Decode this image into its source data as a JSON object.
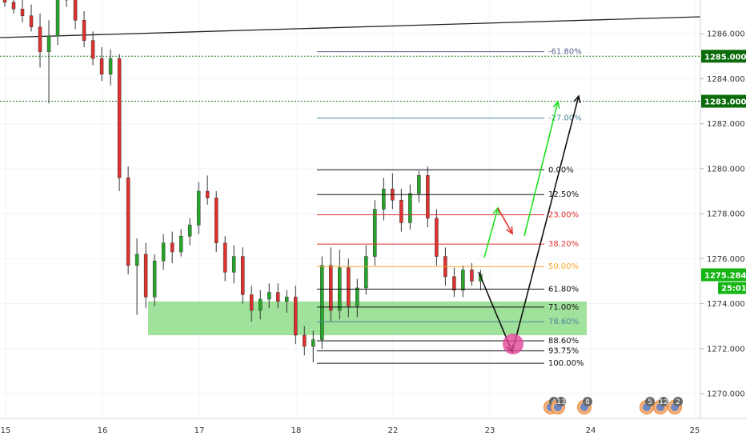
{
  "chart_data": {
    "type": "candlestick",
    "colors": {
      "up": "#26a629",
      "down": "#e0312e",
      "zone": "#8fdc8a",
      "axis_bg": "#ffffff"
    },
    "x_axis_labels": [
      "15",
      "16",
      "17",
      "18",
      "22",
      "23",
      "24",
      "25"
    ],
    "y_ticks": [
      1270.0,
      1272.0,
      1274.0,
      1276.0,
      1278.0,
      1280.0,
      1282.0,
      1284.0,
      1286.0
    ],
    "y_tick_labels": [
      "1270.000",
      "1272.000",
      "1274.000",
      "1276.000",
      "1278.000",
      "1280.000",
      "1282.000",
      "1284.000",
      "1286.000"
    ],
    "ylim": [
      1268.9,
      1287.5
    ],
    "price_tags": [
      {
        "value": 1285.0,
        "label": "1285.000",
        "color": "#0b6b0b"
      },
      {
        "value": 1283.0,
        "label": "1283.000",
        "color": "#0b6b0b"
      },
      {
        "value": 1275.284,
        "label": "1275.284",
        "color": "#14b514"
      }
    ],
    "countdown": "25:01",
    "trendline": {
      "start": [
        0,
        1286.4
      ],
      "end": [
        875,
        1287.0
      ]
    },
    "demand_zone": {
      "low": 1272.6,
      "high": 1274.1
    },
    "fibonacci": [
      {
        "level": "-61.80%",
        "price": 1285.2,
        "color": "#5a5a8c"
      },
      {
        "level": "-27.00%",
        "price": 1282.25,
        "color": "#4a8aa0"
      },
      {
        "level": "0.00%",
        "price": 1279.95,
        "color": "#111111"
      },
      {
        "level": "12.50%",
        "price": 1278.85,
        "color": "#111111"
      },
      {
        "level": "23.00%",
        "price": 1277.95,
        "color": "#e0312e"
      },
      {
        "level": "38.20%",
        "price": 1276.65,
        "color": "#e0312e"
      },
      {
        "level": "50.00%",
        "price": 1275.65,
        "color": "#f5a623"
      },
      {
        "level": "61.80%",
        "price": 1274.65,
        "color": "#111111"
      },
      {
        "level": "71.00%",
        "price": 1273.85,
        "color": "#111111"
      },
      {
        "level": "78.60%",
        "price": 1273.2,
        "color": "#4a8aa0"
      },
      {
        "level": "88.60%",
        "price": 1272.35,
        "color": "#111111"
      },
      {
        "level": "93.75%",
        "price": 1271.9,
        "color": "#111111"
      },
      {
        "level": "100.00%",
        "price": 1271.35,
        "color": "#111111"
      }
    ],
    "candles": [
      [
        1287.8,
        1288.4,
        1287.2,
        1287.4
      ],
      [
        1287.4,
        1287.9,
        1286.9,
        1287.1
      ],
      [
        1287.1,
        1287.6,
        1286.5,
        1286.8
      ],
      [
        1286.8,
        1287.3,
        1286.1,
        1286.3
      ],
      [
        1286.3,
        1286.9,
        1284.5,
        1285.2
      ],
      [
        1285.2,
        1286.6,
        1282.9,
        1285.9
      ],
      [
        1285.9,
        1288.3,
        1285.5,
        1287.9
      ],
      [
        1287.9,
        1288.2,
        1287.2,
        1287.5
      ],
      [
        1287.5,
        1287.8,
        1286.2,
        1286.6
      ],
      [
        1286.6,
        1287.0,
        1285.4,
        1285.7
      ],
      [
        1285.7,
        1286.1,
        1284.6,
        1284.9
      ],
      [
        1284.9,
        1285.4,
        1283.9,
        1284.2
      ],
      [
        1284.2,
        1285.3,
        1283.7,
        1284.9
      ],
      [
        1284.9,
        1285.1,
        1279.0,
        1279.6
      ],
      [
        1279.6,
        1280.1,
        1275.3,
        1275.7
      ],
      [
        1275.7,
        1276.9,
        1273.5,
        1276.2
      ],
      [
        1276.2,
        1276.7,
        1273.8,
        1274.3
      ],
      [
        1274.3,
        1276.2,
        1273.9,
        1275.9
      ],
      [
        1275.9,
        1277.1,
        1275.5,
        1276.7
      ],
      [
        1276.7,
        1277.2,
        1275.8,
        1276.3
      ],
      [
        1276.3,
        1277.3,
        1276.1,
        1277.0
      ],
      [
        1277.0,
        1277.8,
        1276.6,
        1277.5
      ],
      [
        1277.5,
        1279.4,
        1277.1,
        1279.0
      ],
      [
        1279.0,
        1279.7,
        1278.4,
        1278.7
      ],
      [
        1278.7,
        1279.0,
        1276.3,
        1276.7
      ],
      [
        1276.7,
        1277.0,
        1275.0,
        1275.4
      ],
      [
        1275.4,
        1276.6,
        1274.9,
        1276.1
      ],
      [
        1276.1,
        1276.5,
        1274.0,
        1274.4
      ],
      [
        1274.4,
        1274.8,
        1273.2,
        1273.7
      ],
      [
        1273.7,
        1274.6,
        1273.3,
        1274.2
      ],
      [
        1274.2,
        1274.9,
        1273.8,
        1274.5
      ],
      [
        1274.5,
        1274.9,
        1273.8,
        1274.1
      ],
      [
        1274.1,
        1274.6,
        1273.6,
        1274.3
      ],
      [
        1274.3,
        1274.8,
        1272.2,
        1272.6
      ],
      [
        1272.6,
        1273.0,
        1271.7,
        1272.1
      ],
      [
        1272.1,
        1272.8,
        1271.4,
        1272.4
      ],
      [
        1272.4,
        1276.1,
        1272.0,
        1275.7
      ],
      [
        1275.7,
        1276.5,
        1273.2,
        1273.7
      ],
      [
        1273.7,
        1276.4,
        1273.3,
        1275.6
      ],
      [
        1275.6,
        1276.0,
        1273.4,
        1273.9
      ],
      [
        1273.9,
        1275.1,
        1273.4,
        1274.7
      ],
      [
        1274.7,
        1276.6,
        1274.4,
        1276.1
      ],
      [
        1276.1,
        1278.6,
        1275.7,
        1278.2
      ],
      [
        1278.2,
        1279.6,
        1277.7,
        1279.1
      ],
      [
        1279.1,
        1279.8,
        1278.2,
        1278.6
      ],
      [
        1278.6,
        1279.1,
        1277.2,
        1277.6
      ],
      [
        1277.6,
        1279.3,
        1277.3,
        1278.9
      ],
      [
        1278.9,
        1279.9,
        1278.5,
        1279.7
      ],
      [
        1279.7,
        1280.1,
        1277.4,
        1277.8
      ],
      [
        1277.8,
        1278.2,
        1275.7,
        1276.1
      ],
      [
        1276.1,
        1276.5,
        1274.8,
        1275.2
      ],
      [
        1275.2,
        1275.6,
        1274.3,
        1274.6
      ],
      [
        1274.6,
        1275.7,
        1274.3,
        1275.5
      ],
      [
        1275.5,
        1275.8,
        1274.8,
        1275.0
      ],
      [
        1275.0,
        1275.5,
        1274.6,
        1275.3
      ]
    ]
  },
  "events": [
    {
      "label": "4",
      "country": "us"
    },
    {
      "label": "13",
      "country": "us"
    },
    {
      "label": "8",
      "country": "us"
    },
    {
      "label": "5",
      "country": "us"
    },
    {
      "label": "12",
      "country": "us"
    },
    {
      "label": "2",
      "country": "us"
    }
  ]
}
